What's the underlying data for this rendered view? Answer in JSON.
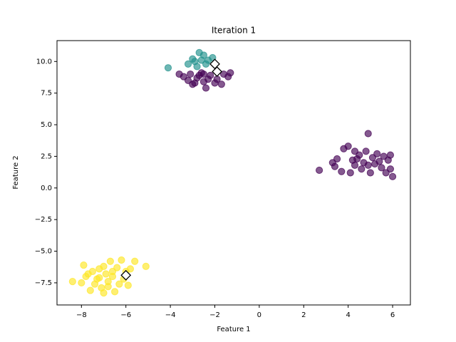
{
  "chart_data": {
    "type": "scatter",
    "title": "Iteration 1",
    "x_label": "Feature 1",
    "y_label": "Feature 2",
    "xlim": [
      -9.1,
      6.8
    ],
    "ylim": [
      -9.25,
      11.65
    ],
    "xticks": [
      {
        "value": -8,
        "label": "−8"
      },
      {
        "value": -6,
        "label": "−6"
      },
      {
        "value": -4,
        "label": "−4"
      },
      {
        "value": -2,
        "label": "−2"
      },
      0,
      2,
      4,
      6
    ],
    "yticks": [
      {
        "value": -7.5,
        "label": "−7.5"
      },
      {
        "value": -5,
        "label": "−5.0"
      },
      {
        "value": -2.5,
        "label": "−2.5"
      },
      {
        "value": 0,
        "label": "0.0"
      },
      {
        "value": 2.5,
        "label": "2.5"
      },
      {
        "value": 5,
        "label": "5.0"
      },
      {
        "value": 7.5,
        "label": "7.5"
      },
      {
        "value": 10,
        "label": "10.0"
      }
    ],
    "series": [
      {
        "color": "#440154",
        "x": [
          -3.1,
          -2.8,
          -2.5,
          -2.2,
          -1.9,
          -3.4,
          -2.6,
          -2.0,
          -1.6,
          -1.3,
          -3.6,
          -2.9,
          -2.4,
          -1.7,
          -3.2,
          -2.7,
          -2.3,
          -1.4,
          -3.0,
          -2.5,
          2.7,
          3.4,
          3.5,
          3.8,
          4.0,
          4.2,
          4.3,
          4.5,
          4.6,
          4.7,
          4.8,
          4.9,
          5.0,
          5.1,
          5.2,
          5.3,
          5.5,
          5.6,
          5.8,
          5.9,
          6.0,
          5.9,
          4.1,
          3.7,
          4.4,
          4.9,
          5.4,
          5.7,
          4.3,
          3.3
        ],
        "y": [
          9.0,
          8.7,
          8.4,
          8.9,
          8.6,
          8.8,
          9.1,
          8.3,
          9.0,
          9.1,
          9.0,
          8.3,
          7.9,
          8.2,
          8.5,
          8.9,
          8.6,
          8.8,
          8.2,
          9.0,
          1.4,
          1.7,
          2.3,
          3.1,
          3.3,
          2.2,
          1.8,
          2.6,
          1.5,
          2.0,
          2.9,
          4.3,
          1.2,
          2.4,
          1.9,
          2.7,
          1.6,
          2.5,
          2.2,
          1.5,
          0.9,
          2.6,
          1.2,
          1.3,
          2.3,
          1.8,
          2.1,
          1.2,
          2.9,
          2.0
        ]
      },
      {
        "color": "#21918c",
        "x": [
          -4.1,
          -3.2,
          -2.9,
          -2.7,
          -2.5,
          -2.3,
          -2.1,
          -2.8,
          -2.4,
          -3.0,
          -2.6
        ],
        "y": [
          9.5,
          9.8,
          10.0,
          10.7,
          10.5,
          10.1,
          10.3,
          9.6,
          9.8,
          10.2,
          10.1
        ]
      },
      {
        "color": "#fde725",
        "x": [
          -8.4,
          -8.0,
          -7.9,
          -7.8,
          -7.6,
          -7.5,
          -7.3,
          -7.2,
          -7.1,
          -7.0,
          -6.9,
          -6.8,
          -6.7,
          -6.6,
          -6.5,
          -6.4,
          -6.3,
          -6.2,
          -6.1,
          -5.9,
          -5.8,
          -5.6,
          -5.1,
          -7.4,
          -7.0,
          -6.6,
          -7.7,
          -6.8,
          -6.0,
          -7.2
        ],
        "y": [
          -7.4,
          -7.5,
          -6.1,
          -7.0,
          -8.1,
          -6.6,
          -7.2,
          -6.4,
          -7.9,
          -8.3,
          -6.8,
          -7.4,
          -5.8,
          -7.0,
          -8.2,
          -6.3,
          -7.6,
          -5.7,
          -7.2,
          -7.7,
          -6.4,
          -5.8,
          -6.2,
          -7.6,
          -6.2,
          -6.6,
          -6.8,
          -7.8,
          -6.6,
          -7.1
        ]
      }
    ],
    "centroids": {
      "color": "#ffffff",
      "x": [
        -2.0,
        -1.9,
        -6.0
      ],
      "y": [
        9.8,
        9.2,
        -6.9
      ]
    }
  }
}
